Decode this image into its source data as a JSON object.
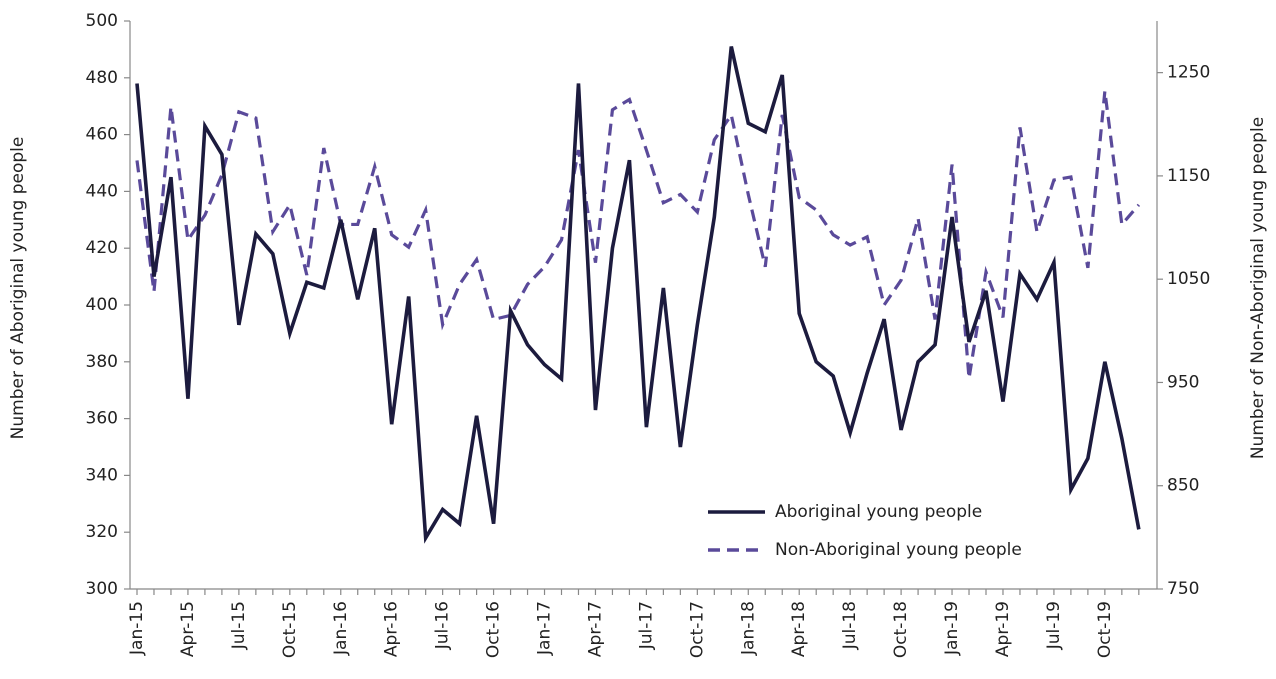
{
  "chart_data": {
    "type": "line",
    "y_label": "Number of Aboriginal young people",
    "y2_label": "Number of Non-Aboriginal young people",
    "categories": [
      "Jan-15",
      null,
      null,
      "Apr-15",
      null,
      null,
      "Jul-15",
      null,
      null,
      "Oct-15",
      null,
      null,
      "Jan-16",
      null,
      null,
      "Apr-16",
      null,
      null,
      "Jul-16",
      null,
      null,
      "Oct-16",
      null,
      null,
      "Jan-17",
      null,
      null,
      "Apr-17",
      null,
      null,
      "Jul-17",
      null,
      null,
      "Oct-17",
      null,
      null,
      "Jan-18",
      null,
      null,
      "Apr-18",
      null,
      null,
      "Jul-18",
      null,
      null,
      "Oct-18",
      null,
      null,
      "Jan-19",
      null,
      null,
      "Apr-19",
      null,
      null,
      "Jul-19",
      null,
      null,
      "Oct-19",
      null,
      null
    ],
    "series": [
      {
        "name": "Aboriginal young people",
        "color": "#1c1b3e",
        "dash": false,
        "axis": "y",
        "values": [
          478,
          410,
          445,
          367,
          463,
          453,
          393,
          425,
          418,
          390,
          408,
          406,
          430,
          402,
          427,
          358,
          403,
          318,
          328,
          323,
          361,
          323,
          398,
          386,
          379,
          374,
          478,
          363,
          420,
          451,
          357,
          406,
          350,
          393,
          431,
          491,
          464,
          461,
          481,
          397,
          380,
          375,
          355,
          376,
          395,
          356,
          380,
          386,
          431,
          387,
          405,
          366,
          411,
          402,
          415,
          335,
          346,
          380,
          353,
          321
        ]
      },
      {
        "name": "Non-Aboriginal young people",
        "color": "#5a4a9a",
        "dash": true,
        "axis": "y2",
        "values": [
          1165,
          1038,
          1217,
          1088,
          1112,
          1151,
          1212,
          1206,
          1096,
          1122,
          1054,
          1177,
          1103,
          1103,
          1159,
          1093,
          1081,
          1117,
          1006,
          1045,
          1069,
          1011,
          1015,
          1045,
          1062,
          1088,
          1175,
          1066,
          1214,
          1224,
          1175,
          1124,
          1132,
          1115,
          1185,
          1209,
          1132,
          1062,
          1209,
          1129,
          1117,
          1093,
          1083,
          1091,
          1025,
          1049,
          1109,
          1011,
          1161,
          954,
          1057,
          1013,
          1197,
          1096,
          1146,
          1149,
          1061,
          1232,
          1103,
          1122
        ]
      }
    ],
    "ylim": [
      300,
      500
    ],
    "yticks": [
      300,
      320,
      340,
      360,
      380,
      400,
      420,
      440,
      460,
      480,
      500
    ],
    "y2lim": [
      750,
      1300
    ],
    "y2ticks": [
      750,
      850,
      950,
      1050,
      1150,
      1250
    ],
    "grid": false,
    "legend": "lower right"
  }
}
